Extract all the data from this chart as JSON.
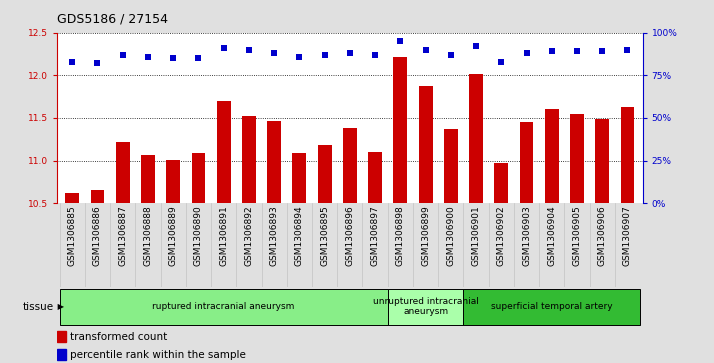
{
  "title": "GDS5186 / 27154",
  "samples": [
    "GSM1306885",
    "GSM1306886",
    "GSM1306887",
    "GSM1306888",
    "GSM1306889",
    "GSM1306890",
    "GSM1306891",
    "GSM1306892",
    "GSM1306893",
    "GSM1306894",
    "GSM1306895",
    "GSM1306896",
    "GSM1306897",
    "GSM1306898",
    "GSM1306899",
    "GSM1306900",
    "GSM1306901",
    "GSM1306902",
    "GSM1306903",
    "GSM1306904",
    "GSM1306905",
    "GSM1306906",
    "GSM1306907"
  ],
  "bar_values": [
    10.62,
    10.65,
    11.22,
    11.07,
    11.01,
    11.09,
    11.7,
    11.52,
    11.47,
    11.09,
    11.18,
    11.38,
    11.1,
    12.22,
    11.88,
    11.37,
    12.01,
    10.97,
    11.45,
    11.6,
    11.55,
    11.49,
    11.63
  ],
  "percentile_values": [
    83,
    82,
    87,
    86,
    85,
    85,
    91,
    90,
    88,
    86,
    87,
    88,
    87,
    95,
    90,
    87,
    92,
    83,
    88,
    89,
    89,
    89,
    90
  ],
  "ylim_left": [
    10.5,
    12.5
  ],
  "ylim_right": [
    0,
    100
  ],
  "yticks_left": [
    10.5,
    11.0,
    11.5,
    12.0,
    12.5
  ],
  "yticks_right": [
    0,
    25,
    50,
    75,
    100
  ],
  "bar_color": "#cc0000",
  "scatter_color": "#0000cc",
  "bg_color": "#e0e0e0",
  "plot_bg_color": "#ffffff",
  "groups": [
    {
      "label": "ruptured intracranial aneurysm",
      "start": 0,
      "end": 13,
      "color": "#88ee88"
    },
    {
      "label": "unruptured intracranial\naneurysm",
      "start": 13,
      "end": 16,
      "color": "#aaffaa"
    },
    {
      "label": "superficial temporal artery",
      "start": 16,
      "end": 23,
      "color": "#33bb33"
    }
  ],
  "tissue_label": "tissue",
  "legend_bar_label": "transformed count",
  "legend_scatter_label": "percentile rank within the sample",
  "title_fontsize": 9,
  "tick_fontsize": 6.5,
  "label_fontsize": 7.5
}
